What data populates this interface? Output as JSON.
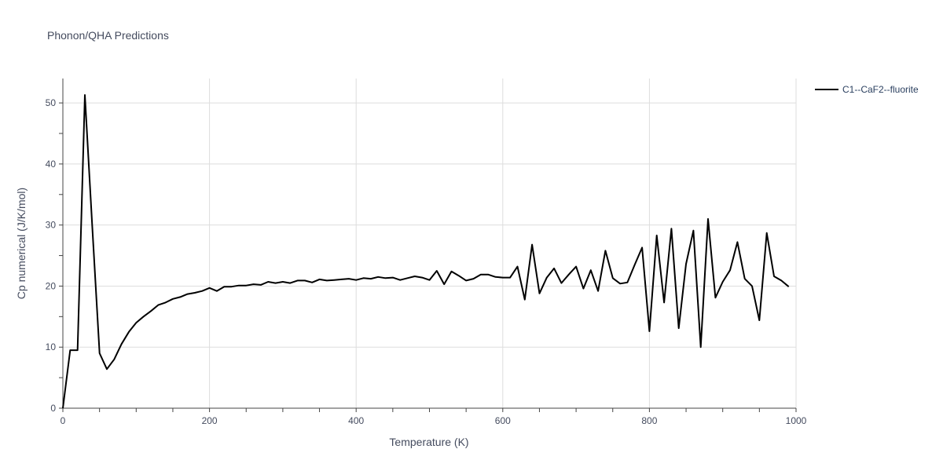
{
  "chart_data": {
    "type": "line",
    "title": "Phonon/QHA Predictions",
    "xlabel": "Temperature (K)",
    "ylabel": "Cp numerical (J/K/mol)",
    "xlim": [
      0,
      1000
    ],
    "ylim": [
      0,
      54
    ],
    "x_ticks": [
      0,
      200,
      400,
      600,
      800,
      1000
    ],
    "y_ticks": [
      0,
      10,
      20,
      30,
      40,
      50
    ],
    "grid": true,
    "legend_position": "top-right",
    "series": [
      {
        "name": "C1--CaF2--fluorite",
        "color": "#000000",
        "x": [
          0,
          10,
          20,
          30,
          40,
          50,
          60,
          70,
          80,
          90,
          100,
          110,
          120,
          130,
          140,
          150,
          160,
          170,
          180,
          190,
          200,
          210,
          220,
          230,
          240,
          250,
          260,
          270,
          280,
          290,
          300,
          310,
          320,
          330,
          340,
          350,
          360,
          370,
          380,
          390,
          400,
          410,
          420,
          430,
          440,
          450,
          460,
          470,
          480,
          490,
          500,
          510,
          520,
          530,
          540,
          550,
          560,
          570,
          580,
          590,
          600,
          610,
          620,
          630,
          640,
          650,
          660,
          670,
          680,
          690,
          700,
          710,
          720,
          730,
          740,
          750,
          760,
          770,
          780,
          790,
          800,
          810,
          820,
          830,
          840,
          850,
          860,
          870,
          880,
          890,
          900,
          910,
          920,
          930,
          940,
          950,
          960,
          970,
          980,
          990
        ],
        "y": [
          0,
          9.5,
          9.5,
          51.3,
          30,
          9,
          6.4,
          8,
          10.5,
          12.5,
          14,
          15,
          15.9,
          16.9,
          17.3,
          17.9,
          18.2,
          18.7,
          18.9,
          19.2,
          19.7,
          19.2,
          19.9,
          19.9,
          20.1,
          20.1,
          20.3,
          20.2,
          20.7,
          20.5,
          20.7,
          20.5,
          20.9,
          20.9,
          20.6,
          21.1,
          20.9,
          21,
          21.1,
          21.2,
          21,
          21.3,
          21.2,
          21.5,
          21.3,
          21.4,
          21,
          21.3,
          21.6,
          21.4,
          21,
          22.5,
          20.3,
          22.4,
          21.7,
          20.9,
          21.2,
          21.9,
          21.9,
          21.5,
          21.4,
          21.4,
          23.2,
          17.8,
          26.8,
          18.8,
          21.4,
          22.9,
          20.5,
          21.9,
          23.2,
          19.6,
          22.6,
          19.2,
          25.8,
          21.3,
          20.4,
          20.6,
          23.5,
          26.3,
          12.6,
          28.3,
          17.3,
          29.4,
          13.1,
          23.6,
          29.1,
          10,
          31,
          18.1,
          20.7,
          22.6,
          27.2,
          21.2,
          20,
          14.4,
          28.7,
          21.6,
          20.9,
          19.9
        ]
      }
    ]
  }
}
